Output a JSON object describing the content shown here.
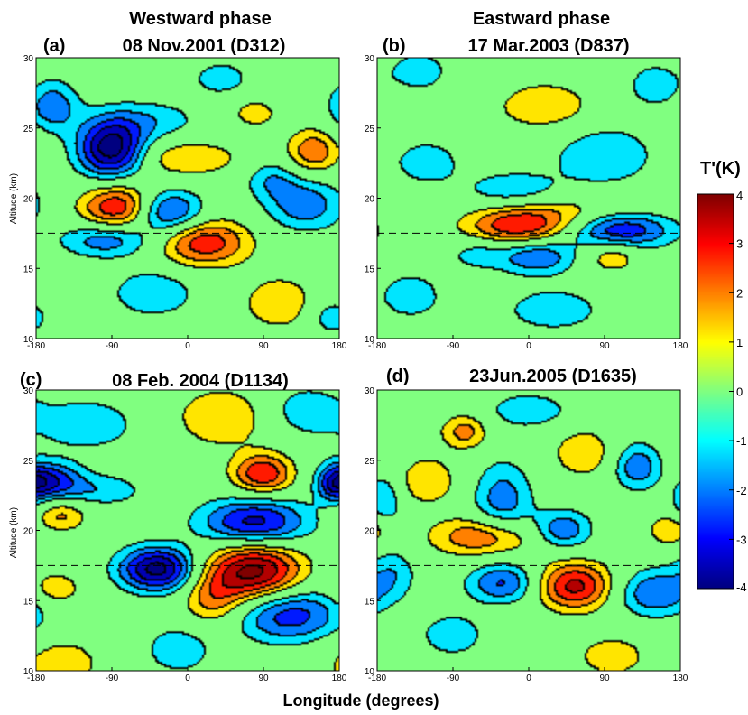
{
  "figure": {
    "phase_labels": [
      "Westward phase",
      "Eastward phase"
    ],
    "xlabel": "Longitude (degrees)",
    "ylabel": "Altitude (km)",
    "colorbar_title": "T'(K)"
  },
  "chart_data": [
    {
      "type": "heatmap",
      "panel_label": "(a)",
      "title": "08 Nov.2001 (D312)",
      "ylabel": "Altitude (km)",
      "xlim": [
        -180,
        180
      ],
      "ylim": [
        10,
        30
      ],
      "x_ticks": [
        -180,
        -90,
        0,
        90,
        180
      ],
      "y_ticks": [
        10,
        15,
        20,
        25,
        30
      ],
      "reference_altitude": 17.5,
      "blobs": [
        {
          "x": -90,
          "y": 23.5,
          "sx": 28,
          "sy": 1.5,
          "a": -4.6
        },
        {
          "x": -160,
          "y": 26.5,
          "sx": 22,
          "sy": 1.3,
          "a": -2.2
        },
        {
          "x": -80,
          "y": 19.3,
          "sx": 32,
          "sy": 1.2,
          "a": 3.5
        },
        {
          "x": -25,
          "y": 19.0,
          "sx": 30,
          "sy": 1.1,
          "a": -3.2
        },
        {
          "x": 20,
          "y": 16.8,
          "sx": 38,
          "sy": 1.2,
          "a": 3.0
        },
        {
          "x": -95,
          "y": 17.0,
          "sx": 38,
          "sy": 0.9,
          "a": -2.3
        },
        {
          "x": 150,
          "y": 23.3,
          "sx": 22,
          "sy": 1.1,
          "a": 2.3
        },
        {
          "x": 140,
          "y": 19.5,
          "sx": 32,
          "sy": 1.3,
          "a": -2.2
        },
        {
          "x": 100,
          "y": 21.3,
          "sx": 22,
          "sy": 1.0,
          "a": -1.4
        },
        {
          "x": 0,
          "y": 22.8,
          "sx": 45,
          "sy": 0.9,
          "a": 1.6
        },
        {
          "x": -40,
          "y": 25.5,
          "sx": 40,
          "sy": 1.0,
          "a": -1.3
        },
        {
          "x": -40,
          "y": 13.2,
          "sx": 35,
          "sy": 1.2,
          "a": -1.6
        },
        {
          "x": 110,
          "y": 12.5,
          "sx": 30,
          "sy": 1.3,
          "a": 1.6
        },
        {
          "x": 170,
          "y": 11.5,
          "sx": 20,
          "sy": 1.0,
          "a": -1.3
        },
        {
          "x": 40,
          "y": 28.5,
          "sx": 25,
          "sy": 0.9,
          "a": -1.3
        },
        {
          "x": 80,
          "y": 26.0,
          "sx": 22,
          "sy": 0.8,
          "a": 1.2
        }
      ]
    },
    {
      "type": "heatmap",
      "panel_label": "(b)",
      "title": "17 Mar.2003 (D837)",
      "ylabel": "",
      "xlim": [
        -180,
        180
      ],
      "ylim": [
        10,
        30
      ],
      "x_ticks": [
        -180,
        -90,
        0,
        90,
        180
      ],
      "y_ticks": [
        10,
        15,
        20,
        25,
        30
      ],
      "reference_altitude": 17.5,
      "blobs": [
        {
          "x": -10,
          "y": 18.0,
          "sx": 45,
          "sy": 1.0,
          "a": 3.2
        },
        {
          "x": 110,
          "y": 17.8,
          "sx": 45,
          "sy": 1.0,
          "a": -3.3
        },
        {
          "x": 10,
          "y": 15.8,
          "sx": 32,
          "sy": 0.9,
          "a": -2.4
        },
        {
          "x": 100,
          "y": 15.8,
          "sx": 22,
          "sy": 0.8,
          "a": 1.6
        },
        {
          "x": 80,
          "y": 19.0,
          "sx": 60,
          "sy": 0.8,
          "a": 1.3
        },
        {
          "x": -20,
          "y": 20.5,
          "sx": 40,
          "sy": 1.0,
          "a": -1.4
        },
        {
          "x": -120,
          "y": 22.5,
          "sx": 30,
          "sy": 1.2,
          "a": -1.3
        },
        {
          "x": 90,
          "y": 23.0,
          "sx": 45,
          "sy": 1.6,
          "a": -1.5
        },
        {
          "x": 20,
          "y": 26.5,
          "sx": 40,
          "sy": 1.2,
          "a": 1.6
        },
        {
          "x": -130,
          "y": 29.0,
          "sx": 25,
          "sy": 1.0,
          "a": -1.4
        },
        {
          "x": 150,
          "y": 28.0,
          "sx": 25,
          "sy": 1.2,
          "a": -1.3
        },
        {
          "x": -140,
          "y": 13.0,
          "sx": 30,
          "sy": 1.3,
          "a": -1.3
        },
        {
          "x": 30,
          "y": 12.0,
          "sx": 45,
          "sy": 1.2,
          "a": -1.3
        },
        {
          "x": -60,
          "y": 16.0,
          "sx": 25,
          "sy": 0.8,
          "a": -1.2
        }
      ]
    },
    {
      "type": "heatmap",
      "panel_label": "(c)",
      "title": "08 Feb. 2004 (D1134)",
      "ylabel": "Altitude (km)",
      "xlim": [
        -180,
        180
      ],
      "ylim": [
        10,
        30
      ],
      "x_ticks": [
        -180,
        -90,
        0,
        90,
        180
      ],
      "y_ticks": [
        10,
        15,
        20,
        25,
        30
      ],
      "reference_altitude": 17.5,
      "blobs": [
        {
          "x": -35,
          "y": 17.2,
          "sx": 32,
          "sy": 1.1,
          "a": -4.4
        },
        {
          "x": 80,
          "y": 17.0,
          "sx": 40,
          "sy": 1.5,
          "a": 4.4
        },
        {
          "x": 80,
          "y": 20.5,
          "sx": 45,
          "sy": 1.2,
          "a": -3.6
        },
        {
          "x": 90,
          "y": 24.0,
          "sx": 25,
          "sy": 1.0,
          "a": 3.2
        },
        {
          "x": -160,
          "y": 23.5,
          "sx": 25,
          "sy": 0.9,
          "a": -2.8
        },
        {
          "x": -100,
          "y": 22.8,
          "sx": 35,
          "sy": 0.8,
          "a": -1.4
        },
        {
          "x": -150,
          "y": 21.0,
          "sx": 22,
          "sy": 0.8,
          "a": 1.8
        },
        {
          "x": 175,
          "y": 23.3,
          "sx": 15,
          "sy": 1.0,
          "a": -2.4
        },
        {
          "x": 120,
          "y": 14.0,
          "sx": 45,
          "sy": 1.4,
          "a": -3.0
        },
        {
          "x": 30,
          "y": 15.0,
          "sx": 25,
          "sy": 1.4,
          "a": 1.8
        },
        {
          "x": -155,
          "y": 15.8,
          "sx": 20,
          "sy": 0.8,
          "a": 1.6
        },
        {
          "x": -150,
          "y": 10.5,
          "sx": 35,
          "sy": 1.3,
          "a": 1.4
        },
        {
          "x": -10,
          "y": 11.5,
          "sx": 30,
          "sy": 1.3,
          "a": -1.4
        },
        {
          "x": 40,
          "y": 28.0,
          "sx": 40,
          "sy": 1.5,
          "a": 1.6
        },
        {
          "x": -120,
          "y": 27.5,
          "sx": 50,
          "sy": 1.5,
          "a": -1.3
        },
        {
          "x": 140,
          "y": 28.5,
          "sx": 30,
          "sy": 1.2,
          "a": -1.4
        }
      ]
    },
    {
      "type": "heatmap",
      "panel_label": "(d)",
      "title": "23Jun.2005 (D1635)",
      "ylabel": "",
      "xlim": [
        -180,
        180
      ],
      "ylim": [
        10,
        30
      ],
      "x_ticks": [
        -180,
        -90,
        0,
        90,
        180
      ],
      "y_ticks": [
        10,
        15,
        20,
        25,
        30
      ],
      "reference_altitude": 17.5,
      "blobs": [
        {
          "x": 55,
          "y": 16.0,
          "sx": 32,
          "sy": 1.2,
          "a": 3.5
        },
        {
          "x": -30,
          "y": 16.2,
          "sx": 30,
          "sy": 1.0,
          "a": -2.5
        },
        {
          "x": -50,
          "y": 19.5,
          "sx": 45,
          "sy": 1.0,
          "a": 2.6
        },
        {
          "x": 40,
          "y": 20.0,
          "sx": 25,
          "sy": 1.0,
          "a": -2.4
        },
        {
          "x": 150,
          "y": 15.5,
          "sx": 32,
          "sy": 1.2,
          "a": -2.4
        },
        {
          "x": 170,
          "y": 20.0,
          "sx": 18,
          "sy": 0.8,
          "a": 1.8
        },
        {
          "x": 130,
          "y": 24.5,
          "sx": 20,
          "sy": 1.2,
          "a": -2.2
        },
        {
          "x": 65,
          "y": 25.5,
          "sx": 25,
          "sy": 1.2,
          "a": 1.6
        },
        {
          "x": -75,
          "y": 27.0,
          "sx": 20,
          "sy": 0.9,
          "a": 2.0
        },
        {
          "x": -30,
          "y": 22.0,
          "sx": 25,
          "sy": 2.0,
          "a": -2.1
        },
        {
          "x": -120,
          "y": 23.5,
          "sx": 25,
          "sy": 1.2,
          "a": 1.6
        },
        {
          "x": -170,
          "y": 22.0,
          "sx": 15,
          "sy": 1.5,
          "a": -1.6
        },
        {
          "x": -160,
          "y": 17.0,
          "sx": 20,
          "sy": 1.2,
          "a": -1.3
        },
        {
          "x": 0,
          "y": 28.5,
          "sx": 40,
          "sy": 1.0,
          "a": -1.3
        },
        {
          "x": -90,
          "y": 12.5,
          "sx": 30,
          "sy": 1.2,
          "a": -1.3
        },
        {
          "x": 100,
          "y": 11.0,
          "sx": 35,
          "sy": 1.2,
          "a": 1.2
        }
      ]
    }
  ],
  "colorbar": {
    "min": -4,
    "max": 4,
    "ticks": [
      4,
      3,
      2,
      1,
      0,
      -1,
      -2,
      -3,
      -4
    ],
    "contour_levels": [
      -4,
      -3.2,
      -2.4,
      -1.6,
      -0.8,
      0.8,
      1.6,
      2.4,
      3.2,
      4
    ]
  }
}
